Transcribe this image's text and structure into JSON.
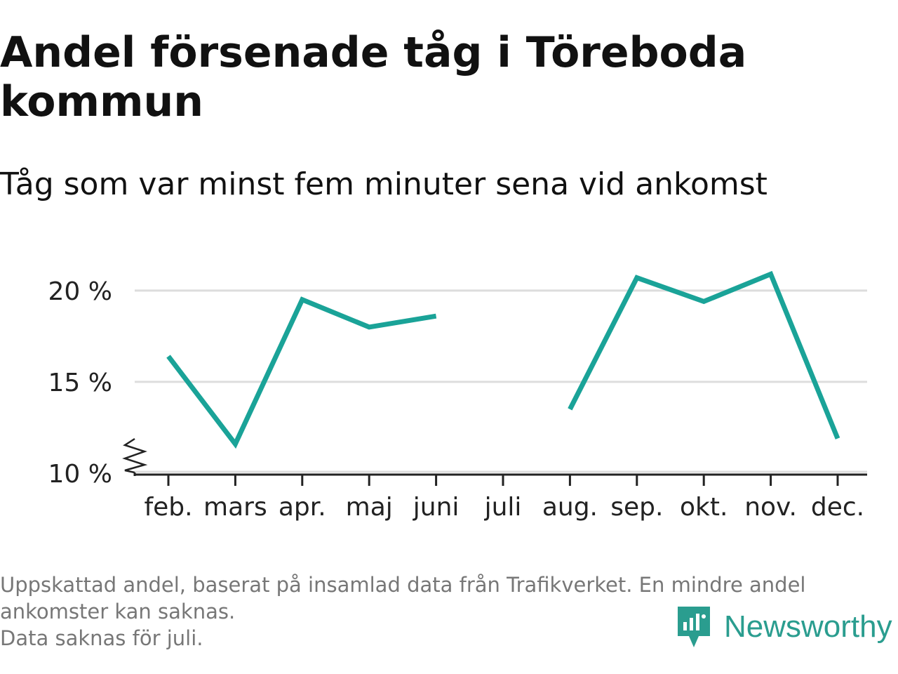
{
  "title": "Andel försenade tåg i Töreboda kommun",
  "subtitle": "Tåg som var minst fem minuter sena vid ankomst",
  "notes": [
    "Uppskattad andel, baserat på insamlad data från Trafikverket. En mindre andel ankomster kan saknas.",
    "Data saknas för juli."
  ],
  "logo": {
    "text": "Newsworthy",
    "icon": "newsworthy-logo-icon"
  },
  "colors": {
    "line": "#1aa398",
    "grid": "#dddddd",
    "axis": "#222222",
    "note": "#777777",
    "brand": "#2a9d8f"
  },
  "chart_data": {
    "type": "line",
    "title": "Andel försenade tåg i Töreboda kommun",
    "subtitle": "Tåg som var minst fem minuter sena vid ankomst",
    "xlabel": "",
    "ylabel": "",
    "categories": [
      "feb.",
      "mars",
      "apr.",
      "maj",
      "juni",
      "juli",
      "aug.",
      "sep.",
      "okt.",
      "nov.",
      "dec."
    ],
    "series": [
      {
        "values": [
          16.4,
          11.6,
          19.5,
          18.0,
          18.6,
          null,
          13.5,
          20.7,
          19.4,
          20.9,
          11.9
        ]
      }
    ],
    "yticks": [
      10,
      15,
      20
    ],
    "ytick_labels": [
      "10 %",
      "15 %",
      "20 %"
    ],
    "ylim": [
      10,
      21.3
    ],
    "y_axis_break": true,
    "grid": true,
    "legend": "none"
  }
}
